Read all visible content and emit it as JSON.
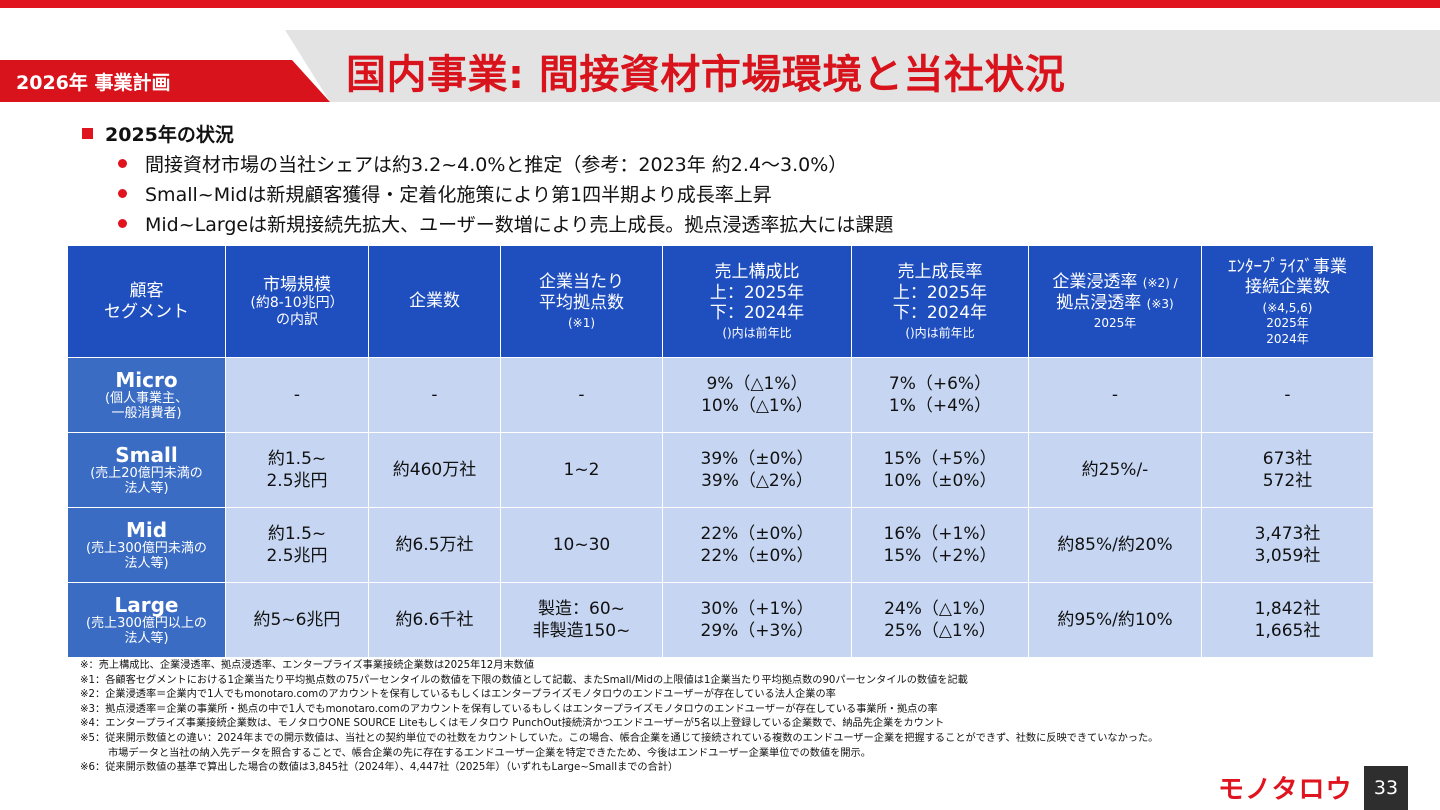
{
  "header": {
    "plan_label": "2026年 事業計画",
    "title": "国内事業: 間接資材市場環境と当社状況"
  },
  "status": {
    "heading": "2025年の状況",
    "items": [
      "間接資材市場の当社シェアは約3.2~4.0%と推定（参考：2023年 約2.4～3.0%）",
      "Small~Midは新規顧客獲得・定着化施策により第1四半期より成長率上昇",
      "Mid~Largeは新規接続先拡大、ユーザー数増により売上成長。拠点浸透率拡大には課題"
    ]
  },
  "table": {
    "headers": {
      "segment": [
        "顧客",
        "セグメント"
      ],
      "market": [
        "市場規模",
        "(約8-10兆円）",
        "の内訳"
      ],
      "companies": "企業数",
      "avg_sites": [
        "企業当たり",
        "平均拠点数",
        "(※1)"
      ],
      "sales_share": [
        "売上構成比",
        "上：2025年",
        "下：2024年",
        "()内は前年比"
      ],
      "growth": [
        "売上成長率",
        "上：2025年",
        "下：2024年",
        "()内は前年比"
      ],
      "penetration": [
        "企業浸透率",
        "(※2) /",
        "拠点浸透率",
        "(※3)",
        "2025年"
      ],
      "enterprise": [
        "ｴﾝﾀｰﾌﾟﾗｲｽﾞ事業",
        "接続企業数",
        "(※4,5,6)",
        "2025年",
        "2024年"
      ]
    },
    "rows": [
      {
        "name": "Micro",
        "desc": [
          "(個人事業主、",
          "一般消費者)"
        ],
        "market": [
          "-"
        ],
        "companies": "-",
        "avg_sites": [
          "-"
        ],
        "sales_share": [
          "9%（△1%）",
          "10%（△1%）"
        ],
        "growth": [
          "7%（+6%）",
          "1%（+4%）"
        ],
        "penetration": "-",
        "enterprise": [
          "-"
        ]
      },
      {
        "name": "Small",
        "desc": [
          "(売上20億円未満の",
          "法人等)"
        ],
        "market": [
          "約1.5~",
          "2.5兆円"
        ],
        "companies": "約460万社",
        "avg_sites": [
          "1~2"
        ],
        "sales_share": [
          "39%（±0%）",
          "39%（△2%）"
        ],
        "growth": [
          "15%（+5%）",
          "10%（±0%）"
        ],
        "penetration": "約25%/-",
        "enterprise": [
          "673社",
          "572社"
        ]
      },
      {
        "name": "Mid",
        "desc": [
          "(売上300億円未満の",
          "法人等)"
        ],
        "market": [
          "約1.5~",
          "2.5兆円"
        ],
        "companies": "約6.5万社",
        "avg_sites": [
          "10~30"
        ],
        "sales_share": [
          "22%（±0%）",
          "22%（±0%）"
        ],
        "growth": [
          "16%（+1%）",
          "15%（+2%）"
        ],
        "penetration": "約85%/約20%",
        "enterprise": [
          "3,473社",
          "3,059社"
        ]
      },
      {
        "name": "Large",
        "desc": [
          "(売上300億円以上の",
          "法人等)"
        ],
        "market": [
          "約5~6兆円"
        ],
        "companies": "約6.6千社",
        "avg_sites": [
          "製造：60~",
          "非製造150~"
        ],
        "sales_share": [
          "30%（+1%）",
          "29%（+3%）"
        ],
        "growth": [
          "24%（△1%）",
          "25%（△1%）"
        ],
        "penetration": "約95%/約10%",
        "enterprise": [
          "1,842社",
          "1,665社"
        ]
      }
    ]
  },
  "notes": [
    "※：売上構成比、企業浸透率、拠点浸透率、エンタープライズ事業接続企業数は2025年12月末数値",
    "※1：各顧客セグメントにおける1企業当たり平均拠点数の75パーセンタイルの数値を下限の数値として記載、またSmall/Midの上限値は1企業当たり平均拠点数の90パーセンタイルの数値を記載",
    "※2：企業浸透率＝企業内で1人でもmonotaro.comのアカウントを保有しているもしくはエンタープライズモノタロウのエンドユーザーが存在している法人企業の率",
    "※3：拠点浸透率＝企業の事業所・拠点の中で1人でもmonotaro.comのアカウントを保有しているもしくはエンタープライズモノタロウのエンドユーザーが存在している事業所・拠点の率",
    "※4：エンタープライズ事業接続企業数は、モノタロウONE SOURCE Liteもしくはモノタロウ PunchOut接続済かつエンドユーザーが5名以上登録している企業数で、納品先企業をカウント",
    "※5：従来開示数値との違い：2024年までの開示数値は、当社との契約単位での社数をカウントしていた。この場合、帳合企業を通じて接続されている複数のエンドユーザー企業を把握することができず、社数に反映できていなかった。",
    "市場データと当社の納入先データを照合することで、帳合企業の先に存在するエンドユーザー企業を特定できたため、今後はエンドユーザー企業単位での数値を開示。",
    "※6：従来開示数値の基準で算出した場合の数値は3,845社（2024年）、4,447社（2025年）（いずれもLarge~Smallまでの合計）"
  ],
  "footer": {
    "logo_text": "モノタロウ",
    "page_number": "33"
  },
  "colors": {
    "brand_red": "#e0141e",
    "header_blue": "#1f4fbf",
    "row_head_blue": "#3b6cc4",
    "cell_light_blue": "#c6d6f2"
  }
}
